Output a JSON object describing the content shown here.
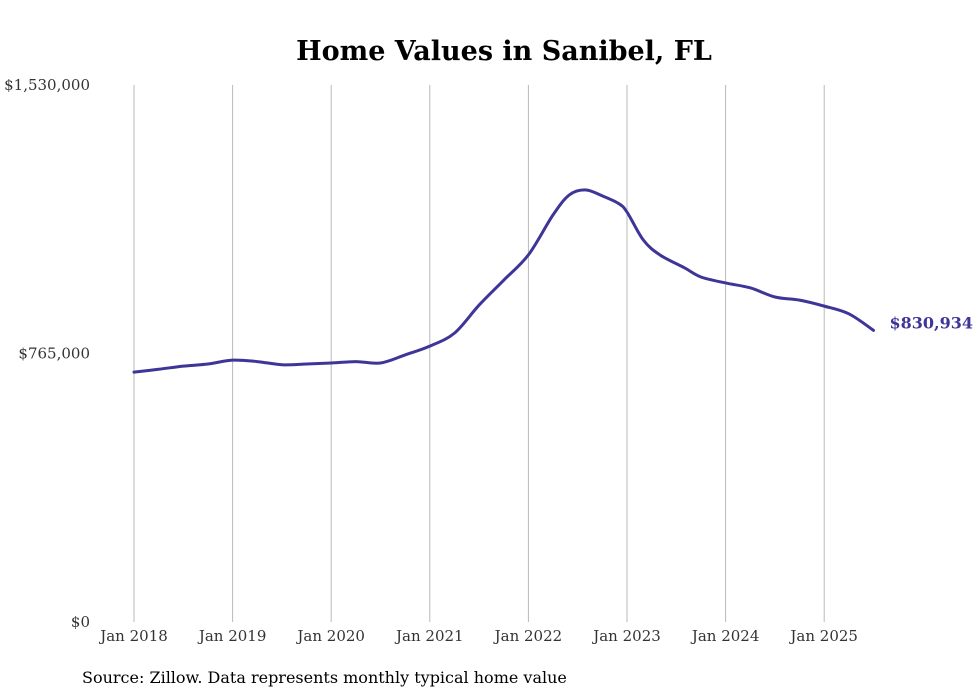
{
  "chart_data": {
    "type": "line",
    "title": "Home Values in Sanibel, FL",
    "xlabel": "",
    "ylabel": "",
    "ylim": [
      0,
      1530000
    ],
    "yticks": [
      0,
      765000,
      1530000
    ],
    "ytick_labels": [
      "$0",
      "$765,000",
      "$1,530,000"
    ],
    "xticks": [
      "2018-01",
      "2019-01",
      "2020-01",
      "2021-01",
      "2022-01",
      "2023-01",
      "2024-01",
      "2025-01"
    ],
    "xtick_labels": [
      "Jan 2018",
      "Jan 2019",
      "Jan 2020",
      "Jan 2021",
      "Jan 2022",
      "Jan 2023",
      "Jan 2024",
      "Jan 2025"
    ],
    "grid": "vertical",
    "line_color": "#3d3597",
    "end_label": "$830,934",
    "series": [
      {
        "name": "Typical home value",
        "x": [
          "2018-01",
          "2018-04",
          "2018-07",
          "2018-10",
          "2019-01",
          "2019-04",
          "2019-07",
          "2019-10",
          "2020-01",
          "2020-04",
          "2020-07",
          "2020-10",
          "2021-01",
          "2021-04",
          "2021-07",
          "2021-10",
          "2022-01",
          "2022-04",
          "2022-06",
          "2022-08",
          "2022-10",
          "2022-12",
          "2023-01",
          "2023-03",
          "2023-05",
          "2023-08",
          "2023-10",
          "2024-01",
          "2024-04",
          "2024-07",
          "2024-10",
          "2025-01",
          "2025-04",
          "2025-07"
        ],
        "values": [
          712000,
          720000,
          729000,
          735000,
          746000,
          742000,
          733000,
          735000,
          738000,
          742000,
          738000,
          761000,
          786000,
          823000,
          903000,
          974000,
          1046000,
          1160000,
          1217000,
          1231000,
          1214000,
          1192000,
          1168000,
          1088000,
          1046000,
          1009000,
          983000,
          966000,
          952000,
          926000,
          917000,
          900000,
          878000,
          830934
        ]
      }
    ]
  },
  "source": "Source: Zillow. Data represents monthly typical home value"
}
